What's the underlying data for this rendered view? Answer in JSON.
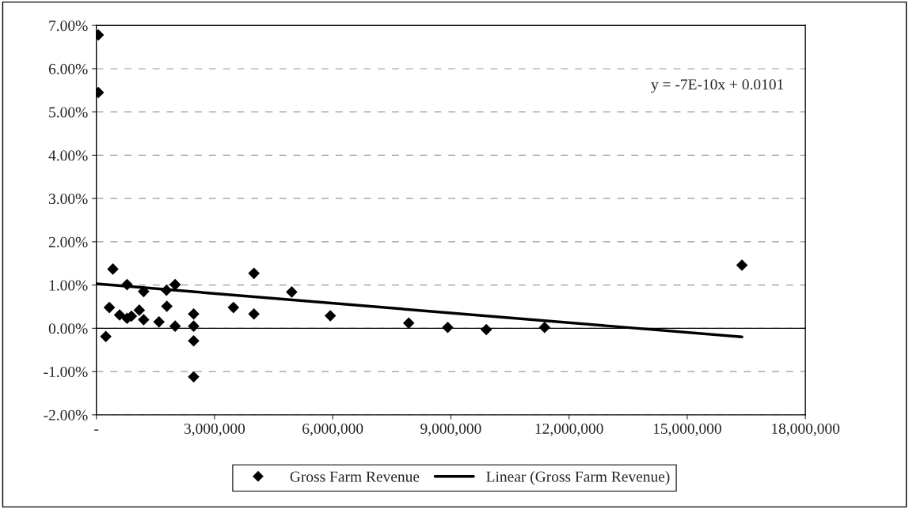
{
  "chart_data": {
    "type": "scatter",
    "x": [
      50000,
      50000,
      420000,
      240000,
      330000,
      590000,
      780000,
      780000,
      890000,
      1090000,
      1200000,
      1200000,
      1590000,
      1780000,
      1790000,
      2000000,
      2000000,
      2470000,
      2470000,
      2470000,
      2470000,
      3480000,
      4000000,
      4000000,
      4960000,
      5940000,
      7930000,
      8920000,
      9900000,
      11380000,
      16390000
    ],
    "series": [
      {
        "name": "Gross Farm Revenue",
        "color": "#000000",
        "marker": "diamond",
        "values": [
          6.78,
          5.45,
          1.37,
          -0.19,
          0.48,
          0.31,
          1.01,
          0.23,
          0.28,
          0.42,
          0.85,
          0.2,
          0.15,
          0.88,
          0.51,
          1.01,
          0.05,
          0.33,
          0.05,
          -0.29,
          -1.12,
          0.48,
          1.27,
          0.33,
          0.84,
          0.29,
          0.12,
          0.02,
          -0.03,
          0.02,
          1.46
        ]
      },
      {
        "name": "Linear (Gross Farm Revenue)",
        "type": "line",
        "color": "#000000",
        "line_style": "solid",
        "x": [
          0,
          16390000
        ],
        "values": [
          1.03,
          -0.2
        ]
      }
    ],
    "xlim": [
      0,
      18000000
    ],
    "xticks": [
      {
        "value": 0,
        "label": "-"
      },
      {
        "value": 3000000,
        "label": "3,000,000"
      },
      {
        "value": 6000000,
        "label": "6,000,000"
      },
      {
        "value": 9000000,
        "label": "9,000,000"
      },
      {
        "value": 12000000,
        "label": "12,000,000"
      },
      {
        "value": 15000000,
        "label": "15,000,000"
      },
      {
        "value": 18000000,
        "label": "18,000,000"
      }
    ],
    "ylim": [
      -2,
      7
    ],
    "yticks": [
      {
        "value": -2,
        "label": "-2.00%"
      },
      {
        "value": -1,
        "label": "-1.00%"
      },
      {
        "value": 0,
        "label": "0.00%"
      },
      {
        "value": 1,
        "label": "1.00%"
      },
      {
        "value": 2,
        "label": "2.00%"
      },
      {
        "value": 3,
        "label": "3.00%"
      },
      {
        "value": 4,
        "label": "4.00%"
      },
      {
        "value": 5,
        "label": "5.00%"
      },
      {
        "value": 6,
        "label": "6.00%"
      },
      {
        "value": 7,
        "label": "7.00%"
      }
    ],
    "ref_lines": [
      {
        "axis": "y",
        "value": 0,
        "color": "#000000"
      }
    ],
    "annotations": [
      "y = -7E-10x + 0.0101"
    ],
    "grid": "y",
    "legend": "bottom"
  }
}
